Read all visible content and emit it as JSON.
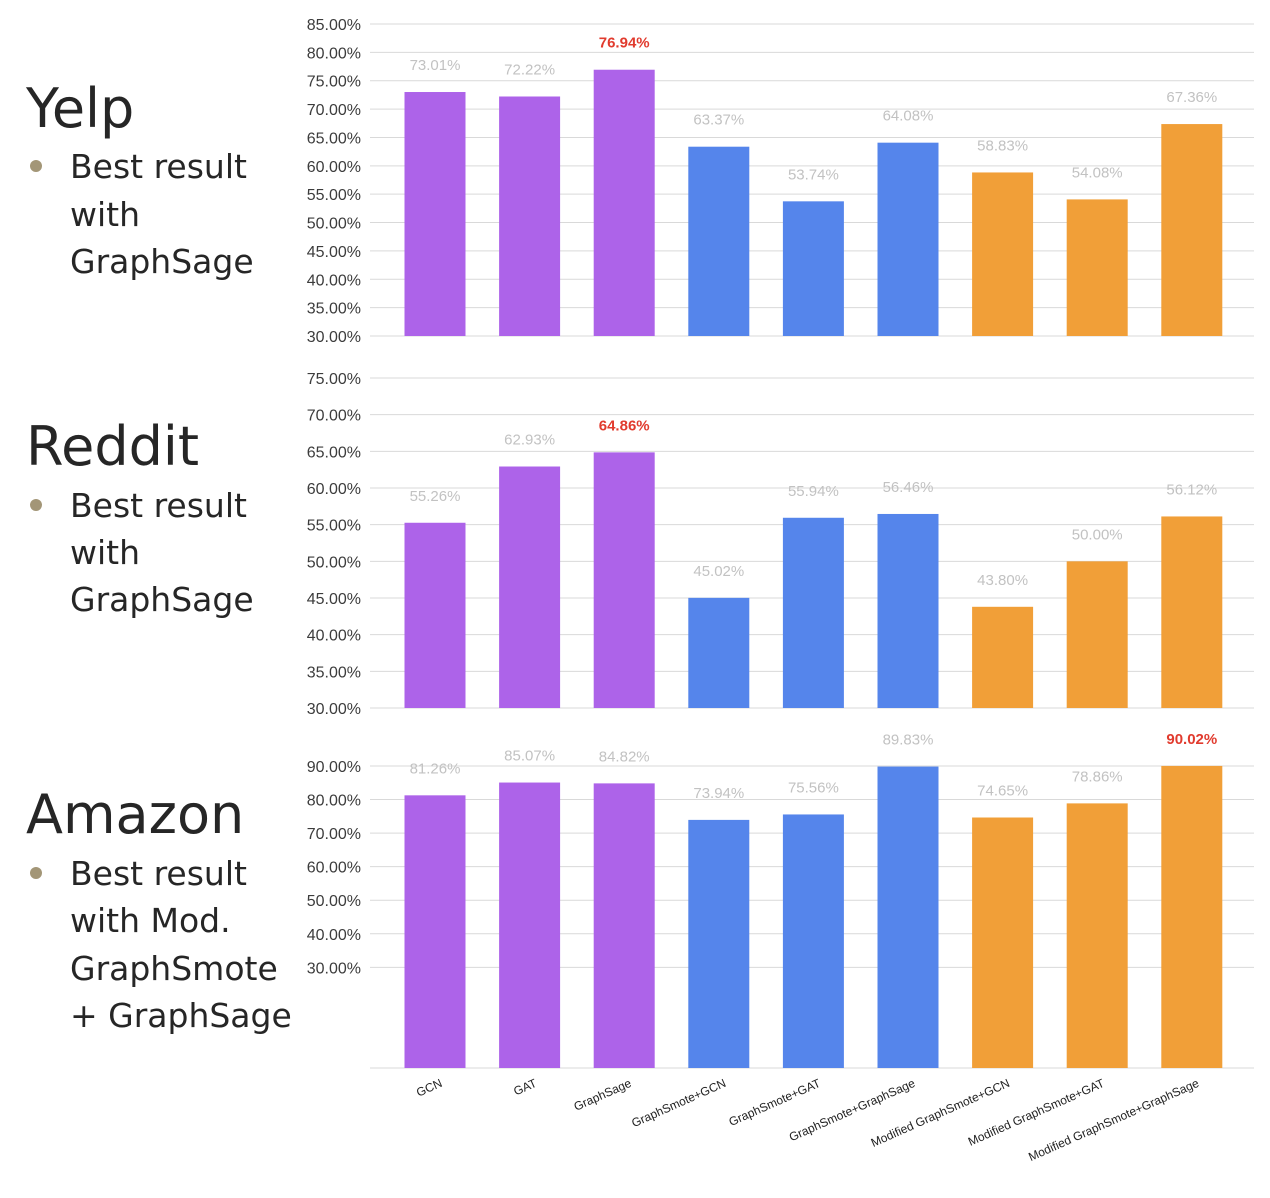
{
  "sections": [
    {
      "title": "Yelp",
      "bullet_lines": [
        "Best result",
        "with",
        "GraphSage"
      ]
    },
    {
      "title": "Reddit",
      "bullet_lines": [
        "Best result",
        "with",
        "GraphSage"
      ]
    },
    {
      "title": "Amazon",
      "bullet_lines": [
        "Best result",
        "with Mod.",
        "GraphSmote",
        "+ GraphSage"
      ]
    }
  ],
  "chart_data": [
    {
      "type": "bar",
      "dataset": "Yelp",
      "categories": [
        "GCN",
        "GAT",
        "GraphSage",
        "GraphSmote+GCN",
        "GraphSmote+GAT",
        "GraphSmote+GraphSage",
        "Modified GraphSmote+GCN",
        "Modified GraphSmote+GAT",
        "Modified GraphSmote+GraphSage"
      ],
      "values": [
        73.01,
        72.22,
        76.94,
        63.37,
        53.74,
        64.08,
        58.83,
        54.08,
        67.36
      ],
      "value_labels": [
        "73.01%",
        "72.22%",
        "76.94%",
        "63.37%",
        "53.74%",
        "64.08%",
        "58.83%",
        "54.08%",
        "67.36%"
      ],
      "ylim": [
        30,
        85
      ],
      "yticks": [
        "30.00%",
        "35.00%",
        "40.00%",
        "45.00%",
        "50.00%",
        "55.00%",
        "60.00%",
        "65.00%",
        "70.00%",
        "75.00%",
        "80.00%",
        "85.00%"
      ],
      "highlight_index": 2,
      "grid": true
    },
    {
      "type": "bar",
      "dataset": "Reddit",
      "categories": [
        "GCN",
        "GAT",
        "GraphSage",
        "GraphSmote+GCN",
        "GraphSmote+GAT",
        "GraphSmote+GraphSage",
        "Modified GraphSmote+GCN",
        "Modified GraphSmote+GAT",
        "Modified GraphSmote+GraphSage"
      ],
      "values": [
        55.26,
        62.93,
        64.86,
        45.02,
        55.94,
        56.46,
        43.8,
        50.0,
        56.12
      ],
      "value_labels": [
        "55.26%",
        "62.93%",
        "64.86%",
        "45.02%",
        "55.94%",
        "56.46%",
        "43.80%",
        "50.00%",
        "56.12%"
      ],
      "ylim": [
        30,
        75
      ],
      "yticks": [
        "30.00%",
        "35.00%",
        "40.00%",
        "45.00%",
        "50.00%",
        "55.00%",
        "60.00%",
        "65.00%",
        "70.00%",
        "75.00%"
      ],
      "highlight_index": 2,
      "grid": true
    },
    {
      "type": "bar",
      "dataset": "Amazon",
      "categories": [
        "GCN",
        "GAT",
        "GraphSage",
        "GraphSmote+GCN",
        "GraphSmote+GAT",
        "GraphSmote+GraphSage",
        "Modified GraphSmote+GCN",
        "Modified GraphSmote+GAT",
        "Modified GraphSmote+GraphSage"
      ],
      "values": [
        81.26,
        85.07,
        84.82,
        73.94,
        75.56,
        89.83,
        74.65,
        78.86,
        90.02
      ],
      "value_labels": [
        "81.26%",
        "85.07%",
        "84.82%",
        "73.94%",
        "75.56%",
        "89.83%",
        "74.65%",
        "78.86%",
        "90.02%"
      ],
      "ylim": [
        0,
        90
      ],
      "yticks": [
        "30.00%",
        "40.00%",
        "50.00%",
        "60.00%",
        "70.00%",
        "80.00%",
        "90.00%"
      ],
      "highlight_index": 8,
      "grid": true,
      "show_category_labels": true
    }
  ],
  "colors": {
    "baseline": "#ad63e9",
    "graphsmote": "#5585eb",
    "modified_graphsmote": "#f19f38",
    "highlight_label": "#e13b2e",
    "value_label": "#c2c2c2",
    "tick_label": "#3c3c3c",
    "grid": "#d9d9d9"
  }
}
